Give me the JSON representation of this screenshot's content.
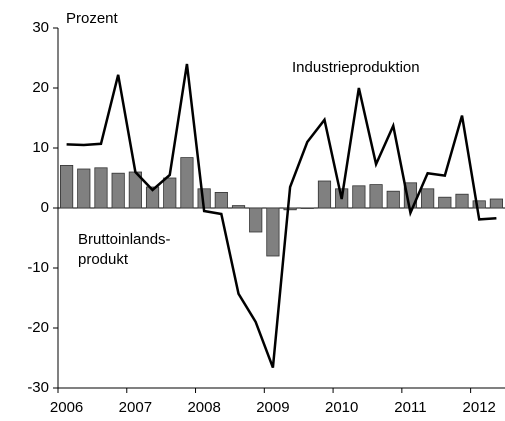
{
  "chart_data": {
    "type": "bar-line",
    "ylabel": "Prozent",
    "categories": [
      "2006",
      null,
      null,
      null,
      "2007",
      null,
      null,
      null,
      "2008",
      null,
      null,
      null,
      "2009",
      null,
      null,
      null,
      "2010",
      null,
      null,
      null,
      "2011",
      null,
      null,
      null,
      "2012",
      null
    ],
    "series": [
      {
        "kind": "bar",
        "label": [
          "Bruttoinlands-",
          "produkt"
        ],
        "color": "#808080",
        "values": [
          7.1,
          6.5,
          6.7,
          5.8,
          6.0,
          3.5,
          5.0,
          8.4,
          3.2,
          2.6,
          0.4,
          -4.0,
          -8.0,
          -0.3,
          0.0,
          4.5,
          3.2,
          3.7,
          3.9,
          2.8,
          4.2,
          3.2,
          1.8,
          2.3,
          1.2,
          1.5
        ]
      },
      {
        "kind": "line",
        "label": [
          "Industrieproduktion"
        ],
        "color": "#000000",
        "values": [
          10.6,
          10.5,
          10.7,
          22.2,
          6.0,
          3.0,
          5.5,
          24.0,
          -0.5,
          -1.0,
          -14.3,
          -19.0,
          -26.6,
          3.5,
          11.0,
          14.7,
          1.5,
          20.0,
          7.3,
          13.7,
          -0.8,
          5.8,
          5.4,
          15.4,
          -1.9,
          -1.7
        ]
      }
    ],
    "ylim": [
      -30,
      30
    ],
    "yticks": [
      -30,
      -20,
      -10,
      0,
      10,
      20,
      30
    ]
  }
}
